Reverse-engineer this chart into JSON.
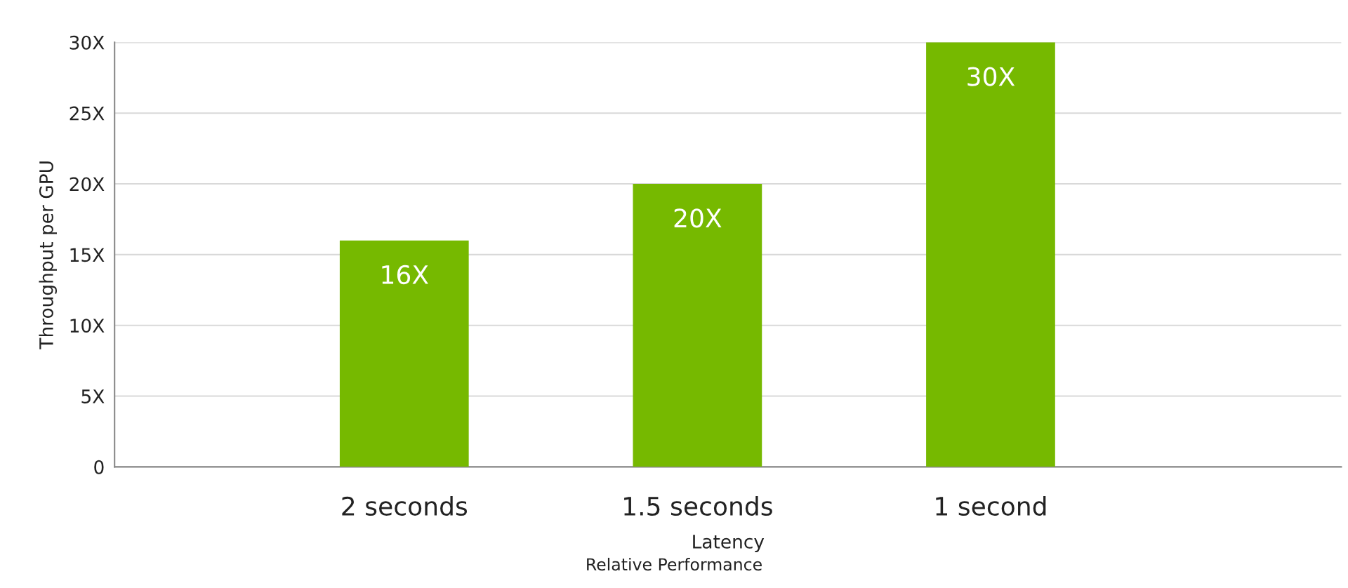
{
  "chart_data": {
    "type": "bar",
    "categories": [
      "2 seconds",
      "1.5 seconds",
      "1 second"
    ],
    "values": [
      16,
      20,
      30
    ],
    "color": "#76b900",
    "xlabel": "Latency",
    "ylabel": "Throughput per GPU",
    "ylim": [
      0,
      30
    ],
    "yticks": [
      0,
      {
        "value": 5,
        "label": "5X"
      },
      {
        "value": 10,
        "label": "10X"
      },
      {
        "value": 15,
        "label": "15X"
      },
      {
        "value": 20,
        "label": "20X"
      },
      {
        "value": 25,
        "label": "25X"
      },
      {
        "value": 30,
        "label": "30X"
      }
    ],
    "value_labels": [
      "16X",
      "20X",
      "30X"
    ],
    "annotations": [
      "Relative Performance"
    ],
    "grid": "y",
    "legend": false
  }
}
